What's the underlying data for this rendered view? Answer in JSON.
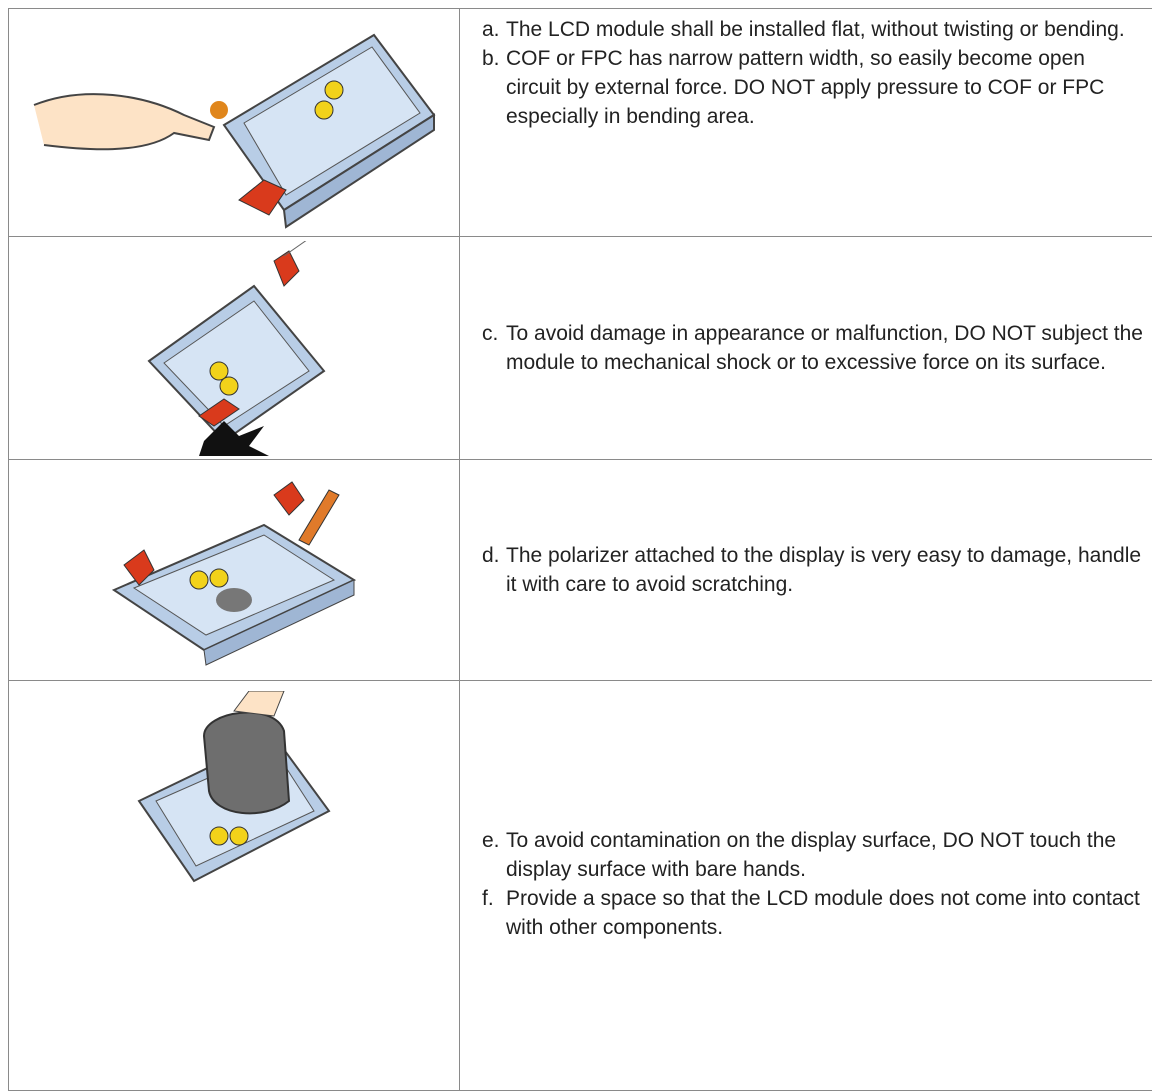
{
  "table": {
    "rows": [
      {
        "items": [
          {
            "marker": "a.",
            "text": "The LCD module shall be installed flat, without twisting or bending."
          },
          {
            "marker": "b.",
            "text": "COF or FPC has narrow pattern width, so easily become open circuit by external force. DO NOT apply pressure to COF or FPC especially in bending area."
          }
        ]
      },
      {
        "items": [
          {
            "marker": "c.",
            "text": "To avoid damage in appearance or malfunction, DO NOT subject the module to mechanical shock or to excessive force on its surface."
          }
        ]
      },
      {
        "items": [
          {
            "marker": "d.",
            "text": "The polarizer attached to the display is very easy to damage, handle it with care to avoid scratching."
          }
        ]
      },
      {
        "items": [
          {
            "marker": "e.",
            "text": "To avoid contamination on the display surface, DO NOT touch the display surface with bare hands."
          },
          {
            "marker": "f.",
            "text": "Provide a space so that the LCD module does not come into contact with other components."
          }
        ]
      }
    ]
  }
}
